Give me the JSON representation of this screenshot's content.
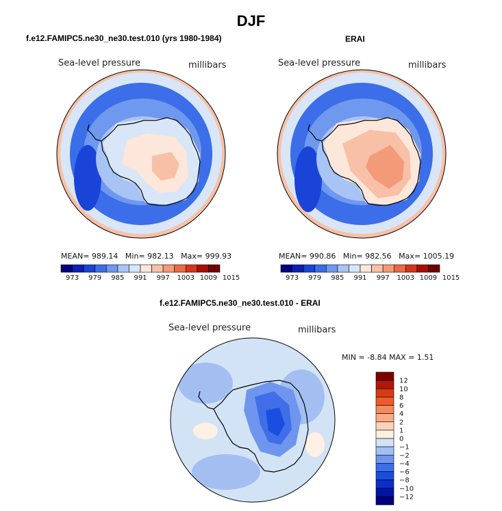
{
  "figure": {
    "title": "DJF"
  },
  "colors": {
    "abs_scale": [
      "#00007f",
      "#0b1fb3",
      "#1a44d8",
      "#3b6ee8",
      "#6f98ef",
      "#a8c4f5",
      "#d8e6f8",
      "#fde7da",
      "#f8c0a6",
      "#f39a78",
      "#ea6a45",
      "#d8341c",
      "#a80f06",
      "#6e0000"
    ],
    "diff_scale": [
      "#000080",
      "#0014a6",
      "#0a2fc8",
      "#1a4ee0",
      "#3f6ee8",
      "#6f95ee",
      "#a3bff2",
      "#d3e3f6",
      "#fff0e4",
      "#fcd2b8",
      "#f9ac86",
      "#f48a5e",
      "#ee5a2e",
      "#d83a14",
      "#b21805",
      "#800000"
    ]
  },
  "chart_data": [
    {
      "type": "heatmap",
      "projection": "polar stereographic (south pole)",
      "title": "f.e12.FAMIPC5.ne30_ne30.test.010 (yrs 1980-1984)",
      "left_label": "Sea-level pressure",
      "right_label": "millibars",
      "stats": {
        "mean_label": "MEAN=",
        "mean": "989.14",
        "min_label": "Min=",
        "min": "982.13",
        "max_label": "Max=",
        "max": "999.93"
      },
      "colorbar": {
        "orientation": "horizontal",
        "ticks": [
          "973",
          "979",
          "985",
          "991",
          "997",
          "1003",
          "1009",
          "1015"
        ]
      }
    },
    {
      "type": "heatmap",
      "projection": "polar stereographic (south pole)",
      "title": "ERAI",
      "left_label": "Sea-level pressure",
      "right_label": "millibars",
      "stats": {
        "mean_label": "MEAN=",
        "mean": "990.86",
        "min_label": "Min=",
        "min": "982.56",
        "max_label": "Max=",
        "max": "1005.19"
      },
      "colorbar": {
        "orientation": "horizontal",
        "ticks": [
          "973",
          "979",
          "985",
          "991",
          "997",
          "1003",
          "1009",
          "1015"
        ]
      }
    },
    {
      "type": "heatmap",
      "projection": "polar stereographic (south pole)",
      "title": "f.e12.FAMIPC5.ne30_ne30.test.010 - ERAI",
      "left_label": "Sea-level pressure",
      "right_label": "millibars",
      "stats": {
        "min_label": "MIN =",
        "min": "-8.84",
        "max_label": "MAX =",
        "max": "1.51"
      },
      "colorbar": {
        "orientation": "vertical",
        "ticks": [
          "12",
          "10",
          "8",
          "6",
          "4",
          "2",
          "1",
          "0",
          "−1",
          "−2",
          "−4",
          "−6",
          "−8",
          "−10",
          "−12"
        ]
      }
    }
  ]
}
